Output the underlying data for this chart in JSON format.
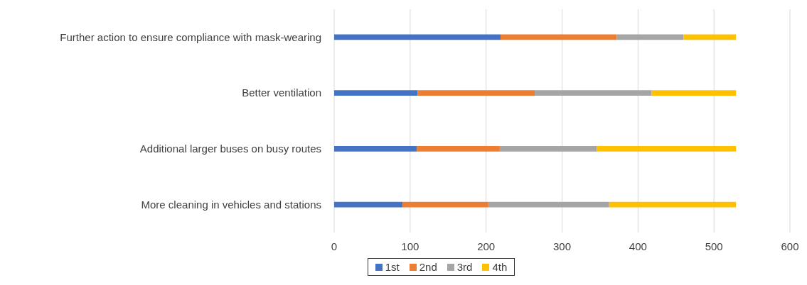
{
  "chart_data": {
    "type": "bar",
    "orientation": "horizontal",
    "stacked": true,
    "categories": [
      "Further action to ensure compliance with mask-wearing",
      "Better ventilation",
      "Additional larger buses on busy routes",
      "More cleaning in vehicles and stations"
    ],
    "series": [
      {
        "name": "1st",
        "color": "#4472c4",
        "values": [
          219,
          110,
          109,
          90
        ]
      },
      {
        "name": "2nd",
        "color": "#ed7d31",
        "values": [
          153,
          154,
          109,
          113
        ]
      },
      {
        "name": "3rd",
        "color": "#a5a5a5",
        "values": [
          88,
          154,
          128,
          159
        ]
      },
      {
        "name": "4th",
        "color": "#ffc000",
        "values": [
          69,
          111,
          183,
          167
        ]
      }
    ],
    "xlim": [
      0,
      600
    ],
    "xticks": [
      0,
      100,
      200,
      300,
      400,
      500,
      600
    ],
    "grid": "x",
    "legend": "bottom"
  }
}
